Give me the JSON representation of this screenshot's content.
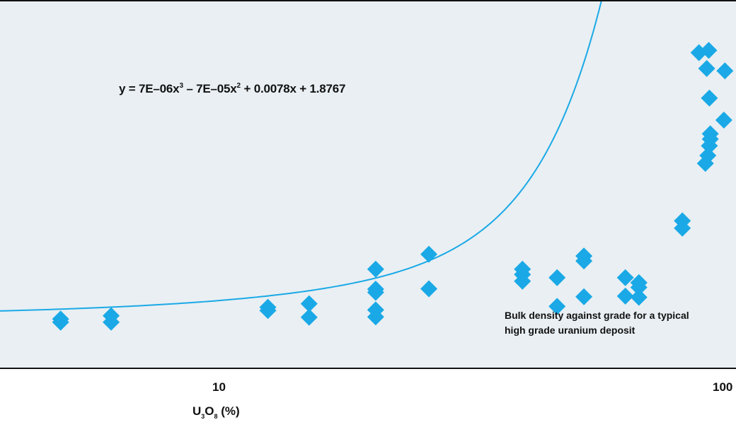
{
  "chart_data": {
    "type": "scatter",
    "title": "",
    "x_scale": "log",
    "xlim": [
      2.19,
      100
    ],
    "ylim": [
      1.7,
      2.95
    ],
    "xlabel": {
      "prefix": "U",
      "sub1": "3",
      "mid": "O",
      "sub2": "8",
      "suffix": " (%)"
    },
    "ylabel": "",
    "x_ticks": [
      {
        "value": 10,
        "label": "10"
      },
      {
        "value": 100,
        "label": "100"
      }
    ],
    "equation": {
      "text": "y = 7E–06x",
      "exp1": "3",
      "mid": " – 7E–05x",
      "exp2": "2",
      "tail": " + 0.0078x + 1.8767"
    },
    "trendline": {
      "a3": 7e-06,
      "a2": -7e-05,
      "a1": 0.0078,
      "a0": 1.8767
    },
    "annotation": [
      "Bulk density against grade for a typical",
      "high grade uranium deposit"
    ],
    "marker_color": "#1aa9e6",
    "line_color": "#1aa9e6",
    "points": [
      {
        "x": 3.0,
        "y": 1.866
      },
      {
        "x": 3.0,
        "y": 1.855
      },
      {
        "x": 3.9,
        "y": 1.877
      },
      {
        "x": 3.9,
        "y": 1.855
      },
      {
        "x": 8.8,
        "y": 1.906
      },
      {
        "x": 8.8,
        "y": 1.895
      },
      {
        "x": 10.9,
        "y": 1.918
      },
      {
        "x": 10.9,
        "y": 1.872
      },
      {
        "x": 15.4,
        "y": 1.873
      },
      {
        "x": 15.4,
        "y": 1.897
      },
      {
        "x": 15.4,
        "y": 1.957
      },
      {
        "x": 15.4,
        "y": 1.968
      },
      {
        "x": 15.4,
        "y": 2.036
      },
      {
        "x": 20.3,
        "y": 2.087
      },
      {
        "x": 20.3,
        "y": 1.969
      },
      {
        "x": 33.0,
        "y": 2.036
      },
      {
        "x": 33.0,
        "y": 2.018
      },
      {
        "x": 33.0,
        "y": 1.995
      },
      {
        "x": 39.5,
        "y": 2.007
      },
      {
        "x": 39.5,
        "y": 1.909
      },
      {
        "x": 45.4,
        "y": 2.081
      },
      {
        "x": 45.4,
        "y": 2.064
      },
      {
        "x": 45.4,
        "y": 1.942
      },
      {
        "x": 56.3,
        "y": 2.007
      },
      {
        "x": 56.3,
        "y": 1.944
      },
      {
        "x": 60.4,
        "y": 1.99
      },
      {
        "x": 60.4,
        "y": 1.974
      },
      {
        "x": 60.4,
        "y": 1.94
      },
      {
        "x": 60.4,
        "y": 1.99
      },
      {
        "x": 75.7,
        "y": 2.201
      },
      {
        "x": 75.7,
        "y": 2.176
      },
      {
        "x": 82.5,
        "y": 2.775
      },
      {
        "x": 85.9,
        "y": 2.721
      },
      {
        "x": 86.8,
        "y": 2.783
      },
      {
        "x": 85.3,
        "y": 2.397
      },
      {
        "x": 86.4,
        "y": 2.424
      },
      {
        "x": 87.1,
        "y": 2.457
      },
      {
        "x": 87.5,
        "y": 2.48
      },
      {
        "x": 87.1,
        "y": 2.62
      },
      {
        "x": 87.5,
        "y": 2.498
      },
      {
        "x": 94.4,
        "y": 2.713
      },
      {
        "x": 93.9,
        "y": 2.545
      }
    ]
  }
}
